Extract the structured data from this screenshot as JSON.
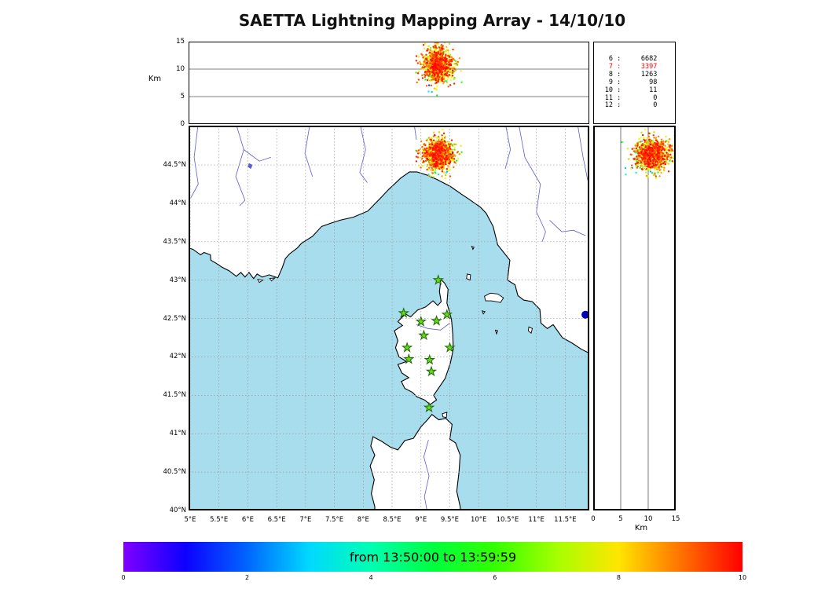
{
  "title": "SAETTA Lightning Mapping Array - 14/10/10",
  "colors": {
    "sea": "#a8dded",
    "land": "#ffffff",
    "coast": "#000000",
    "river": "#5b5bd6",
    "grid": "#999999",
    "star_fill": "#66d81e",
    "star_edge": "#1e6b00",
    "blue_marker": "#0000b8",
    "highlight": "#ff0000"
  },
  "top_panel": {
    "ylabel": "Km",
    "yticks": [
      {
        "label": "15",
        "value": 15
      },
      {
        "label": "10",
        "value": 10
      },
      {
        "label": "5",
        "value": 5
      },
      {
        "label": "0",
        "value": 0
      }
    ]
  },
  "stats_panel": {
    "rows": [
      {
        "level": "6",
        "count": "6682",
        "highlight": false
      },
      {
        "level": "7",
        "count": "3397",
        "highlight": true
      },
      {
        "level": "8",
        "count": "1263",
        "highlight": false
      },
      {
        "level": "9",
        "count": "98",
        "highlight": false
      },
      {
        "level": "10",
        "count": "11",
        "highlight": false
      },
      {
        "level": "11",
        "count": "0",
        "highlight": false
      },
      {
        "level": "12",
        "count": "0",
        "highlight": false
      }
    ]
  },
  "map_panel": {
    "lat_ticks": [
      {
        "label": "44.5°N",
        "value": 44.5
      },
      {
        "label": "44°N",
        "value": 44.0
      },
      {
        "label": "43.5°N",
        "value": 43.5
      },
      {
        "label": "43°N",
        "value": 43.0
      },
      {
        "label": "42.5°N",
        "value": 42.5
      },
      {
        "label": "42°N",
        "value": 42.0
      },
      {
        "label": "41.5°N",
        "value": 41.5
      },
      {
        "label": "41°N",
        "value": 41.0
      },
      {
        "label": "40.5°N",
        "value": 40.5
      },
      {
        "label": "40°N",
        "value": 40.0
      }
    ],
    "lon_ticks": [
      {
        "label": "5°E",
        "value": 5.0
      },
      {
        "label": "5.5°E",
        "value": 5.5
      },
      {
        "label": "6°E",
        "value": 6.0
      },
      {
        "label": "6.5°E",
        "value": 6.5
      },
      {
        "label": "7°E",
        "value": 7.0
      },
      {
        "label": "7.5°E",
        "value": 7.5
      },
      {
        "label": "8°E",
        "value": 8.0
      },
      {
        "label": "8.5°E",
        "value": 8.5
      },
      {
        "label": "9°E",
        "value": 9.0
      },
      {
        "label": "9.5°E",
        "value": 9.5
      },
      {
        "label": "10°E",
        "value": 10.0
      },
      {
        "label": "10.5°E",
        "value": 10.5
      },
      {
        "label": "11°E",
        "value": 11.0
      },
      {
        "label": "11.5°E",
        "value": 11.5
      }
    ],
    "stations": [
      {
        "lon": 9.3,
        "lat": 43.0
      },
      {
        "lon": 8.7,
        "lat": 42.57
      },
      {
        "lon": 9.0,
        "lat": 42.46
      },
      {
        "lon": 9.27,
        "lat": 42.47
      },
      {
        "lon": 9.45,
        "lat": 42.55
      },
      {
        "lon": 9.05,
        "lat": 42.28
      },
      {
        "lon": 8.76,
        "lat": 42.12
      },
      {
        "lon": 9.5,
        "lat": 42.12
      },
      {
        "lon": 8.79,
        "lat": 41.97
      },
      {
        "lon": 9.15,
        "lat": 41.96
      },
      {
        "lon": 9.18,
        "lat": 41.81
      },
      {
        "lon": 9.14,
        "lat": 41.34
      }
    ],
    "blue_marker": {
      "lon": 11.85,
      "lat": 42.55
    }
  },
  "right_panel": {
    "xlabel": "Km",
    "xticks": [
      {
        "label": "0",
        "value": 0
      },
      {
        "label": "5",
        "value": 5
      },
      {
        "label": "10",
        "value": 10
      },
      {
        "label": "15",
        "value": 15
      }
    ]
  },
  "colorbar": {
    "label": "from 13:50:00 to 13:59:59",
    "min": 0,
    "max": 10,
    "ticks": [
      0,
      2,
      4,
      6,
      8,
      10
    ],
    "colormap": "rainbow"
  },
  "scatter_cluster": {
    "lon_mean": 9.3,
    "lon_sd": 0.12,
    "lat_mean": 44.64,
    "lat_sd": 0.095,
    "alt_mean_km": 10.8,
    "alt_sd_km": 1.5,
    "n_points": 1100,
    "seed": 7
  },
  "chart_data": [
    {
      "type": "scatter",
      "name": "altitude-vs-longitude",
      "ylabel": "Km",
      "xlim": [
        4.973,
        11.917
      ],
      "ylim": [
        0,
        15
      ],
      "yticks": [
        0,
        5,
        10,
        15
      ],
      "grid": "horizontal lines at 5 and 10 km",
      "series": [
        {
          "name": "vhf-sources",
          "cluster_lon": [
            9.0,
            9.65
          ],
          "cluster_alt_km": [
            6.5,
            14.8
          ],
          "color_by": "time"
        }
      ]
    },
    {
      "type": "scatter",
      "name": "map-latitude-vs-longitude",
      "xlim": [
        4.973,
        11.917
      ],
      "ylim": [
        40.0,
        45.012
      ],
      "xtick_labels": [
        "5°E",
        "5.5°E",
        "6°E",
        "6.5°E",
        "7°E",
        "7.5°E",
        "8°E",
        "8.5°E",
        "9°E",
        "9.5°E",
        "10°E",
        "10.5°E",
        "11°E",
        "11.5°E"
      ],
      "ytick_labels": [
        "44.5°N",
        "44°N",
        "43.5°N",
        "43°N",
        "42.5°N",
        "42°N",
        "41.5°N",
        "41°N",
        "40.5°N",
        "40°N"
      ],
      "grid": "dashed graticule every 0.5°",
      "series": [
        {
          "name": "vhf-sources",
          "cluster_lon": [
            9.0,
            9.65
          ],
          "cluster_lat": [
            44.35,
            44.95
          ],
          "color_by": "time"
        },
        {
          "name": "lma-stations",
          "marker": "green-star",
          "count": 12,
          "location": "Corsica"
        },
        {
          "name": "blue-marker",
          "marker": "circle",
          "lon": 11.85,
          "lat": 42.55
        }
      ]
    },
    {
      "type": "scatter",
      "name": "latitude-vs-altitude",
      "xlabel": "Km",
      "xlim": [
        0,
        15
      ],
      "xticks": [
        0,
        5,
        10,
        15
      ],
      "ylim": [
        40.0,
        45.012
      ],
      "grid": "vertical lines at 5 and 10 km",
      "series": [
        {
          "name": "vhf-sources",
          "cluster_alt_km": [
            6.5,
            14.8
          ],
          "cluster_lat": [
            44.35,
            44.95
          ],
          "color_by": "time"
        }
      ]
    },
    {
      "type": "table",
      "name": "sources-per-station-count",
      "columns": [
        "min_stations",
        "n_sources"
      ],
      "rows": [
        [
          6,
          6682
        ],
        [
          7,
          3397
        ],
        [
          8,
          1263
        ],
        [
          9,
          98
        ],
        [
          10,
          11
        ],
        [
          11,
          0
        ],
        [
          12,
          0
        ]
      ],
      "highlighted_row": 7
    },
    {
      "type": "colorbar",
      "name": "time-colorbar",
      "label": "from 13:50:00 to 13:59:59",
      "range": [
        0,
        10
      ],
      "ticks": [
        0,
        2,
        4,
        6,
        8,
        10
      ],
      "colormap": "rainbow"
    }
  ]
}
